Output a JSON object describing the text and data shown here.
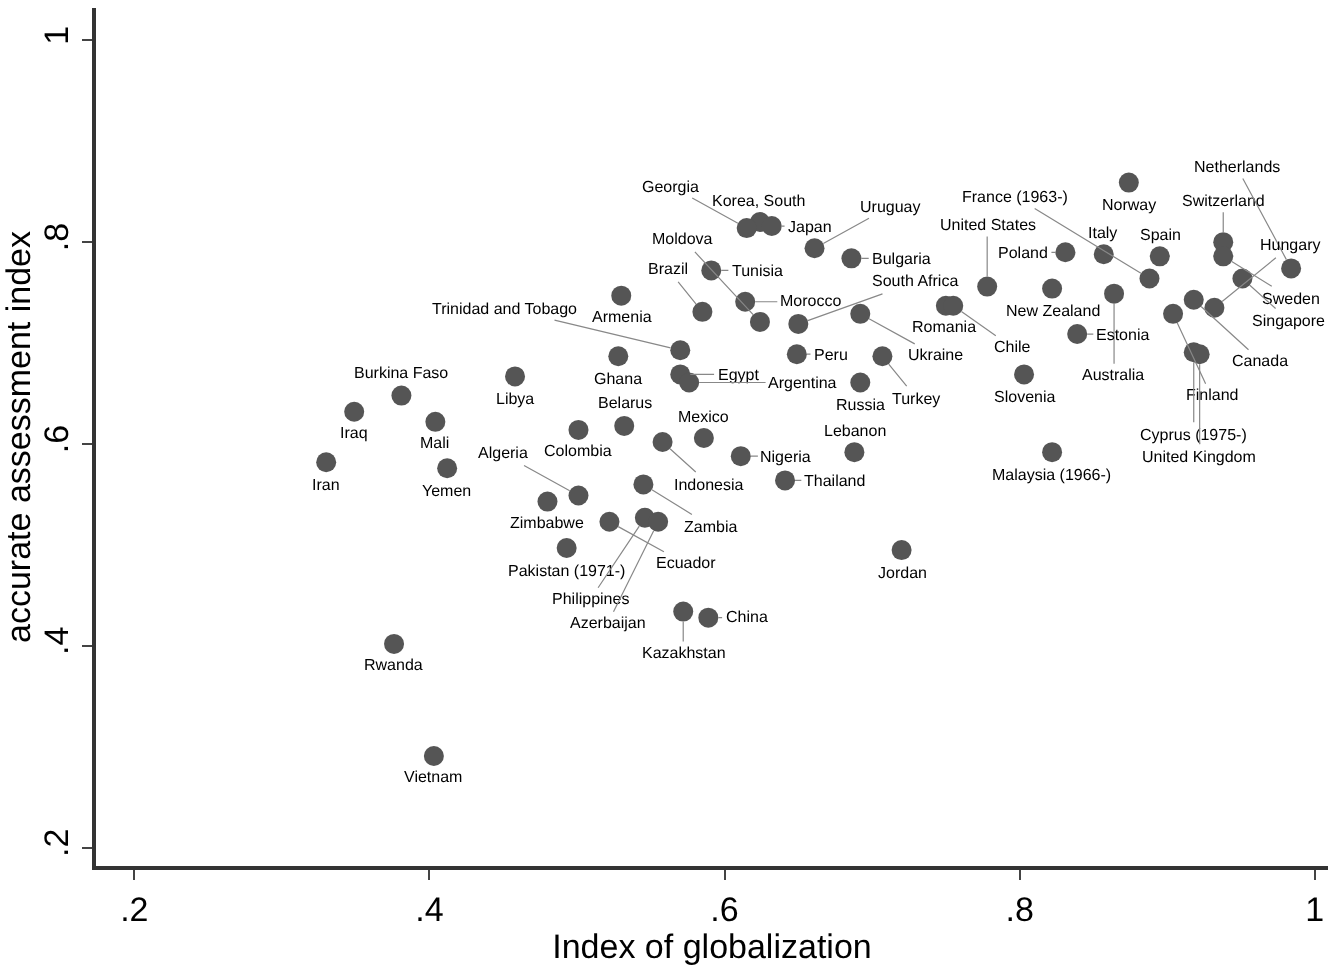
{
  "chart_data": {
    "type": "scatter",
    "xlabel": "Index of globalization",
    "ylabel": "accurate assessment index",
    "xlim": [
      0.174,
      1.009
    ],
    "ylim": [
      0.182,
      1.032
    ],
    "xticks": [
      {
        "value": 0.2,
        "label": ".2"
      },
      {
        "value": 0.4,
        "label": ".4"
      },
      {
        "value": 0.6,
        "label": ".6"
      },
      {
        "value": 0.8,
        "label": ".8"
      },
      {
        "value": 1,
        "label": "1"
      }
    ],
    "yticks": [
      {
        "value": 0.2,
        "label": ".2"
      },
      {
        "value": 0.4,
        "label": ".4"
      },
      {
        "value": 0.6,
        "label": ".6"
      },
      {
        "value": 0.8,
        "label": ".8"
      },
      {
        "value": 1,
        "label": "1"
      }
    ],
    "marker": "circle",
    "series": [
      {
        "color": "#555555",
        "x": [
          0.33,
          0.349,
          0.381,
          0.404,
          0.412,
          0.376,
          0.403,
          0.458,
          0.528,
          0.53,
          0.501,
          0.532,
          0.558,
          0.48,
          0.501,
          0.545,
          0.493,
          0.522,
          0.546,
          0.555,
          0.572,
          0.589,
          0.586,
          0.611,
          0.641,
          0.688,
          0.72,
          0.57,
          0.57,
          0.576,
          0.585,
          0.591,
          0.614,
          0.624,
          0.65,
          0.649,
          0.624,
          0.615,
          0.632,
          0.661,
          0.686,
          0.692,
          0.707,
          0.692,
          0.75,
          0.755,
          0.778,
          0.822,
          0.831,
          0.857,
          0.864,
          0.839,
          0.803,
          0.822,
          0.874,
          0.895,
          0.888,
          0.938,
          0.938,
          0.984,
          0.951,
          0.918,
          0.932,
          0.904,
          0.918,
          0.922
        ],
        "values": [
          0.582,
          0.632,
          0.648,
          0.622,
          0.576,
          0.402,
          0.291,
          0.667,
          0.687,
          0.747,
          0.614,
          0.618,
          0.602,
          0.543,
          0.549,
          0.56,
          0.497,
          0.523,
          0.527,
          0.523,
          0.434,
          0.428,
          0.606,
          0.588,
          0.564,
          0.592,
          0.495,
          0.693,
          0.669,
          0.661,
          0.731,
          0.772,
          0.741,
          0.721,
          0.719,
          0.689,
          0.82,
          0.814,
          0.816,
          0.794,
          0.784,
          0.729,
          0.687,
          0.661,
          0.737,
          0.737,
          0.756,
          0.754,
          0.79,
          0.788,
          0.749,
          0.709,
          0.669,
          0.592,
          0.859,
          0.786,
          0.764,
          0.8,
          0.786,
          0.774,
          0.764,
          0.743,
          0.735,
          0.729,
          0.691,
          0.689
        ]
      }
    ],
    "annotations": [
      {
        "text": "Iran",
        "x": 0.33,
        "y": 0.582
      },
      {
        "text": "Iraq",
        "x": 0.349,
        "y": 0.632
      },
      {
        "text": "Burkina Faso",
        "x": 0.381,
        "y": 0.648
      },
      {
        "text": "Mali",
        "x": 0.404,
        "y": 0.622
      },
      {
        "text": "Yemen",
        "x": 0.412,
        "y": 0.576
      },
      {
        "text": "Rwanda",
        "x": 0.376,
        "y": 0.402
      },
      {
        "text": "Vietnam",
        "x": 0.403,
        "y": 0.291
      },
      {
        "text": "Libya",
        "x": 0.458,
        "y": 0.667
      },
      {
        "text": "Ghana",
        "x": 0.528,
        "y": 0.687
      },
      {
        "text": "Armenia",
        "x": 0.53,
        "y": 0.747
      },
      {
        "text": "Colombia",
        "x": 0.501,
        "y": 0.614
      },
      {
        "text": "Belarus",
        "x": 0.532,
        "y": 0.618
      },
      {
        "text": "Indonesia",
        "x": 0.558,
        "y": 0.602
      },
      {
        "text": "Zimbabwe",
        "x": 0.48,
        "y": 0.543
      },
      {
        "text": "Algeria",
        "x": 0.501,
        "y": 0.549
      },
      {
        "text": "Zambia",
        "x": 0.545,
        "y": 0.56
      },
      {
        "text": "Pakistan (1971-)",
        "x": 0.493,
        "y": 0.497
      },
      {
        "text": "Ecuador",
        "x": 0.522,
        "y": 0.523
      },
      {
        "text": "Philippines",
        "x": 0.546,
        "y": 0.527
      },
      {
        "text": "Azerbaijan",
        "x": 0.555,
        "y": 0.523
      },
      {
        "text": "Kazakhstan",
        "x": 0.572,
        "y": 0.434
      },
      {
        "text": "China",
        "x": 0.589,
        "y": 0.428
      },
      {
        "text": "Mexico",
        "x": 0.586,
        "y": 0.606
      },
      {
        "text": "Nigeria",
        "x": 0.611,
        "y": 0.588
      },
      {
        "text": "Thailand",
        "x": 0.641,
        "y": 0.564
      },
      {
        "text": "Lebanon",
        "x": 0.688,
        "y": 0.592
      },
      {
        "text": "Jordan",
        "x": 0.72,
        "y": 0.495
      },
      {
        "text": "Trinidad and Tobago",
        "x": 0.57,
        "y": 0.693
      },
      {
        "text": "Egypt",
        "x": 0.57,
        "y": 0.669
      },
      {
        "text": "Argentina",
        "x": 0.576,
        "y": 0.661
      },
      {
        "text": "Brazil",
        "x": 0.585,
        "y": 0.731
      },
      {
        "text": "Tunisia",
        "x": 0.591,
        "y": 0.772
      },
      {
        "text": "Morocco",
        "x": 0.614,
        "y": 0.741
      },
      {
        "text": "Moldova",
        "x": 0.624,
        "y": 0.721
      },
      {
        "text": "South Africa",
        "x": 0.65,
        "y": 0.719
      },
      {
        "text": "Peru",
        "x": 0.649,
        "y": 0.689
      },
      {
        "text": "Korea, South",
        "x": 0.624,
        "y": 0.82
      },
      {
        "text": "Georgia",
        "x": 0.615,
        "y": 0.814
      },
      {
        "text": "Japan",
        "x": 0.632,
        "y": 0.816
      },
      {
        "text": "Uruguay",
        "x": 0.661,
        "y": 0.794
      },
      {
        "text": "Bulgaria",
        "x": 0.686,
        "y": 0.784
      },
      {
        "text": "Ukraine",
        "x": 0.692,
        "y": 0.729
      },
      {
        "text": "Turkey",
        "x": 0.707,
        "y": 0.687
      },
      {
        "text": "Russia",
        "x": 0.692,
        "y": 0.661
      },
      {
        "text": "Romania",
        "x": 0.75,
        "y": 0.737
      },
      {
        "text": "Chile",
        "x": 0.755,
        "y": 0.737
      },
      {
        "text": "United States",
        "x": 0.778,
        "y": 0.756
      },
      {
        "text": "New Zealand",
        "x": 0.822,
        "y": 0.754
      },
      {
        "text": "Poland",
        "x": 0.831,
        "y": 0.79
      },
      {
        "text": "Italy",
        "x": 0.857,
        "y": 0.788
      },
      {
        "text": "Australia",
        "x": 0.864,
        "y": 0.749
      },
      {
        "text": "Estonia",
        "x": 0.839,
        "y": 0.709
      },
      {
        "text": "Slovenia",
        "x": 0.803,
        "y": 0.669
      },
      {
        "text": "Malaysia (1966-)",
        "x": 0.822,
        "y": 0.592
      },
      {
        "text": "Norway",
        "x": 0.874,
        "y": 0.859
      },
      {
        "text": "Spain",
        "x": 0.895,
        "y": 0.786
      },
      {
        "text": "France (1963-)",
        "x": 0.888,
        "y": 0.764
      },
      {
        "text": "Switzerland",
        "x": 0.938,
        "y": 0.8
      },
      {
        "text": "Sweden",
        "x": 0.938,
        "y": 0.786
      },
      {
        "text": "Netherlands",
        "x": 0.984,
        "y": 0.774
      },
      {
        "text": "Singapore",
        "x": 0.951,
        "y": 0.764
      },
      {
        "text": "Canada",
        "x": 0.918,
        "y": 0.743
      },
      {
        "text": "Hungary",
        "x": 0.932,
        "y": 0.735
      },
      {
        "text": "Finland",
        "x": 0.904,
        "y": 0.729
      },
      {
        "text": "Cyprus (1975-)",
        "x": 0.918,
        "y": 0.691
      },
      {
        "text": "United Kingdom",
        "x": 0.922,
        "y": 0.689
      }
    ]
  }
}
